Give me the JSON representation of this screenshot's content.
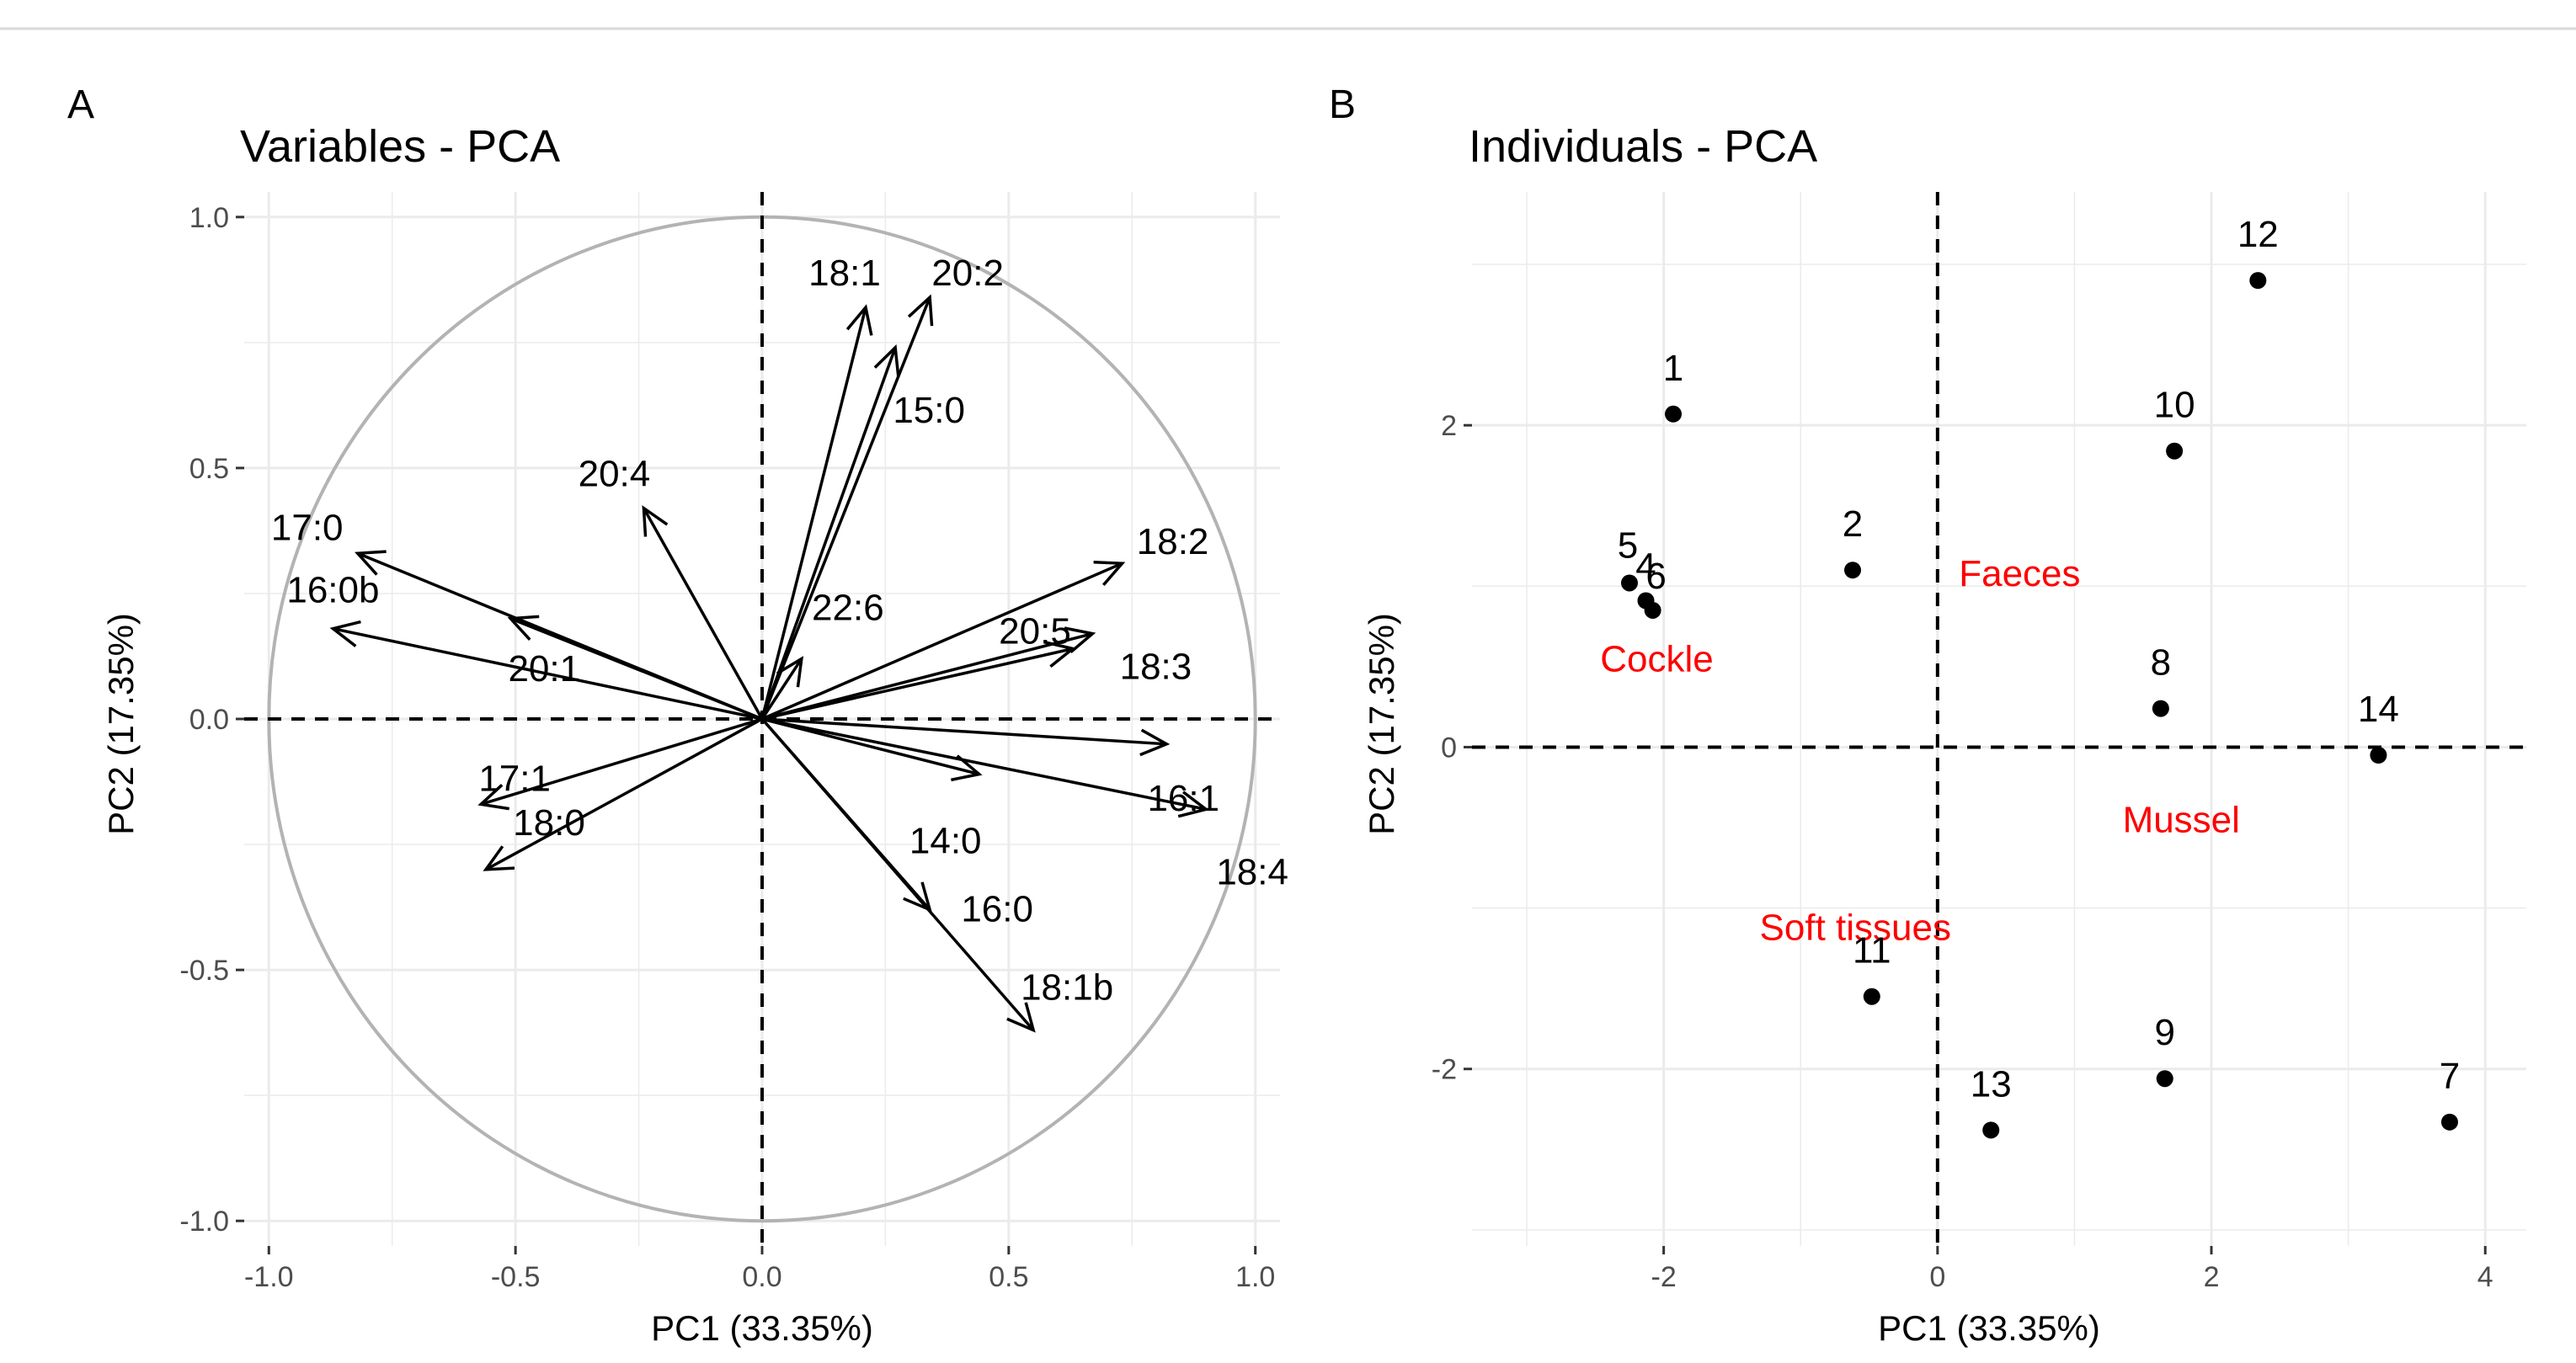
{
  "chart_data": [
    {
      "panel": "A",
      "type": "scatter",
      "subtype": "pca-variable-correlation-circle",
      "title": "Variables - PCA",
      "xlabel": "PC1 (33.35%)",
      "ylabel": "PC2 (17.35%)",
      "xlim": [
        -1.05,
        1.05
      ],
      "ylim": [
        -1.05,
        1.05
      ],
      "xticks": [
        -1.0,
        -0.5,
        0.0,
        0.5,
        1.0
      ],
      "xtick_labels": [
        "-1.0",
        "-0.5",
        "0.0",
        "0.5",
        "1.0"
      ],
      "yticks": [
        -1.0,
        -0.5,
        0.0,
        0.5,
        1.0
      ],
      "ytick_labels": [
        "-1.0",
        "-0.5",
        "0.0",
        "0.5",
        "1.0"
      ],
      "grid": true,
      "circle_radius": 1.0,
      "reference_lines": {
        "x": 0,
        "y": 0,
        "style": "dashed"
      },
      "arrows": [
        {
          "name": "18:1",
          "x": 0.21,
          "y": 0.82
        },
        {
          "name": "20:2",
          "x": 0.34,
          "y": 0.84
        },
        {
          "name": "15:0",
          "x": 0.27,
          "y": 0.74
        },
        {
          "name": "17:0",
          "x": -0.82,
          "y": 0.33
        },
        {
          "name": "16:0b",
          "x": -0.87,
          "y": 0.18
        },
        {
          "name": "20:4",
          "x": -0.24,
          "y": 0.42
        },
        {
          "name": "20:1",
          "x": -0.51,
          "y": 0.2
        },
        {
          "name": "22:6",
          "x": 0.08,
          "y": 0.12
        },
        {
          "name": "18:2",
          "x": 0.73,
          "y": 0.31
        },
        {
          "name": "18:3",
          "x": 0.67,
          "y": 0.17
        },
        {
          "name": "20:5",
          "x": 0.63,
          "y": 0.14
        },
        {
          "name": "16:1",
          "x": 0.82,
          "y": -0.05
        },
        {
          "name": "18:4",
          "x": 0.9,
          "y": -0.18
        },
        {
          "name": "14:0",
          "x": 0.44,
          "y": -0.11
        },
        {
          "name": "16:0",
          "x": 0.34,
          "y": -0.38
        },
        {
          "name": "18:1b",
          "x": 0.55,
          "y": -0.62
        },
        {
          "name": "17:1",
          "x": -0.57,
          "y": -0.17
        },
        {
          "name": "18:0",
          "x": -0.56,
          "y": -0.3
        }
      ]
    },
    {
      "panel": "B",
      "type": "scatter",
      "subtype": "pca-individuals",
      "title": "Individuals - PCA",
      "xlabel": "PC1 (33.35%)",
      "ylabel": "PC2 (17.35%)",
      "xlim": [
        -3.4,
        4.3
      ],
      "ylim": [
        -3.1,
        3.45
      ],
      "xticks": [
        -2,
        0,
        2,
        4
      ],
      "xtick_labels": [
        "-2",
        "0",
        "2",
        "4"
      ],
      "yticks": [
        -2,
        0,
        2
      ],
      "ytick_labels": [
        "-2",
        "0",
        "2"
      ],
      "grid": true,
      "reference_lines": {
        "x": 0,
        "y": 0,
        "style": "dashed"
      },
      "points": [
        {
          "label": "1",
          "x": -1.93,
          "y": 2.07
        },
        {
          "label": "2",
          "x": -0.62,
          "y": 1.1
        },
        {
          "label": "4",
          "x": -2.13,
          "y": 0.91
        },
        {
          "label": "5",
          "x": -2.25,
          "y": 1.02
        },
        {
          "label": "6",
          "x": -2.08,
          "y": 0.85
        },
        {
          "label": "7",
          "x": 3.74,
          "y": -2.33
        },
        {
          "label": "8",
          "x": 1.63,
          "y": 0.24
        },
        {
          "label": "9",
          "x": 1.66,
          "y": -2.06
        },
        {
          "label": "10",
          "x": 1.73,
          "y": 1.84
        },
        {
          "label": "11",
          "x": -0.48,
          "y": -1.55
        },
        {
          "label": "12",
          "x": 2.34,
          "y": 2.9
        },
        {
          "label": "13",
          "x": 0.39,
          "y": -2.38
        },
        {
          "label": "14",
          "x": 3.22,
          "y": -0.05
        }
      ],
      "group_labels": [
        {
          "text": "Faeces",
          "x": 0.6,
          "y": 1.08,
          "color": "#ff0000"
        },
        {
          "text": "Cockle",
          "x": -2.05,
          "y": 0.55,
          "color": "#ff0000"
        },
        {
          "text": "Mussel",
          "x": 1.78,
          "y": -0.45,
          "color": "#ff0000"
        },
        {
          "text": "Soft tissues",
          "x": -0.6,
          "y": -1.12,
          "color": "#ff0000"
        }
      ]
    }
  ]
}
